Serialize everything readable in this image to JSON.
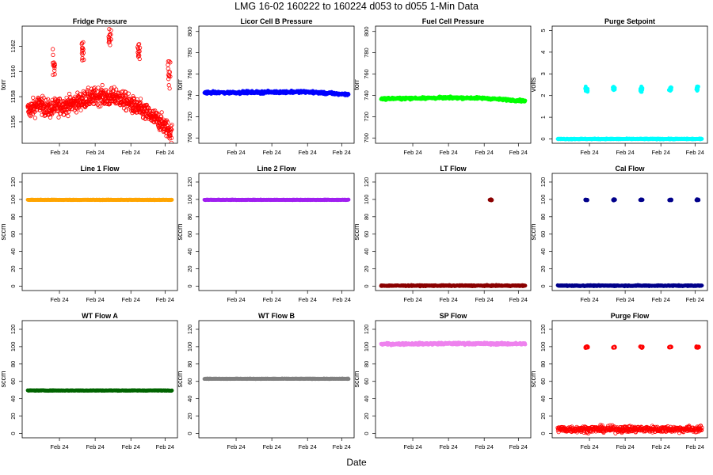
{
  "page": {
    "title": "LMG   16-02    160222 to 160224    d053 to d055   1-Min Data",
    "xlabel": "Date",
    "date_tick_label": "Feb 24"
  },
  "chart_data": [
    {
      "type": "scatter",
      "title": "Fridge Pressure",
      "ylabel": "torr",
      "ylim": [
        1154.3,
        1163.6
      ],
      "yticks": [
        1156,
        1158,
        1160,
        1162
      ],
      "color": "#ff0000",
      "marker": "open-circle",
      "n": 780,
      "baseline": [
        [
          0,
          1156.9
        ],
        [
          0.08,
          1157.4
        ],
        [
          0.15,
          1157.0
        ],
        [
          0.2,
          1157.2
        ],
        [
          0.3,
          1157.4
        ],
        [
          0.4,
          1157.8
        ],
        [
          0.5,
          1158.1
        ],
        [
          0.55,
          1157.9
        ],
        [
          0.62,
          1158.0
        ],
        [
          0.7,
          1157.5
        ],
        [
          0.78,
          1157.0
        ],
        [
          0.85,
          1156.5
        ],
        [
          0.92,
          1156.0
        ],
        [
          1,
          1155.1
        ]
      ],
      "noise": 0.35,
      "spikes": [
        {
          "x": 0.18,
          "y": 1160.8,
          "s": 0.6
        },
        {
          "x": 0.38,
          "y": 1161.6,
          "s": 0.5
        },
        {
          "x": 0.57,
          "y": 1162.6,
          "s": 0.35
        },
        {
          "x": 0.77,
          "y": 1161.6,
          "s": 0.45
        },
        {
          "x": 0.98,
          "y": 1159.8,
          "s": 0.5
        }
      ]
    },
    {
      "type": "scatter",
      "title": "Licor Cell B Pressure",
      "ylabel": "torr",
      "ylim": [
        695,
        805
      ],
      "yticks": [
        700,
        720,
        740,
        760,
        780,
        800
      ],
      "color": "#0000ff",
      "marker": "filled",
      "n": 400,
      "baseline": [
        [
          0,
          742.5
        ],
        [
          0.5,
          743
        ],
        [
          0.7,
          743.3
        ],
        [
          1,
          740.8
        ]
      ],
      "noise": 0.6,
      "spikes": []
    },
    {
      "type": "scatter",
      "title": "Fuel Cell Pressure",
      "ylabel": "torr",
      "ylim": [
        695,
        805
      ],
      "yticks": [
        700,
        720,
        740,
        760,
        780,
        800
      ],
      "color": "#00ff00",
      "marker": "filled",
      "n": 400,
      "baseline": [
        [
          0,
          736.8
        ],
        [
          0.5,
          737.8
        ],
        [
          0.7,
          737.4
        ],
        [
          1,
          734.8
        ]
      ],
      "noise": 0.5,
      "spikes": []
    },
    {
      "type": "scatter",
      "title": "Purge Setpoint",
      "ylabel": "volts",
      "ylim": [
        -0.2,
        5.2
      ],
      "yticks": [
        0,
        1,
        2,
        3,
        4,
        5
      ],
      "color": "#00ffff",
      "marker": "filled",
      "n": 400,
      "baseline": [
        [
          0,
          0
        ],
        [
          1,
          0
        ]
      ],
      "noise": 0.01,
      "spikes": [
        {
          "x": 0.2,
          "y": 2.32,
          "s": 0.06
        },
        {
          "x": 0.39,
          "y": 2.32,
          "s": 0.06
        },
        {
          "x": 0.58,
          "y": 2.3,
          "s": 0.06
        },
        {
          "x": 0.78,
          "y": 2.34,
          "s": 0.06
        },
        {
          "x": 0.97,
          "y": 2.32,
          "s": 0.06
        }
      ]
    },
    {
      "type": "scatter",
      "title": "Line 1 Flow",
      "ylabel": "sccm",
      "ylim": [
        -5,
        130
      ],
      "yticks": [
        0,
        20,
        40,
        60,
        80,
        100,
        120
      ],
      "color": "#ffa500",
      "marker": "filled",
      "n": 400,
      "baseline": [
        [
          0,
          99.5
        ],
        [
          1,
          99.5
        ]
      ],
      "noise": 0.15,
      "spikes": []
    },
    {
      "type": "scatter",
      "title": "Line 2 Flow",
      "ylabel": "sccm",
      "ylim": [
        -5,
        130
      ],
      "yticks": [
        0,
        20,
        40,
        60,
        80,
        100,
        120
      ],
      "color": "#a020f0",
      "marker": "filled",
      "n": 400,
      "baseline": [
        [
          0,
          99.5
        ],
        [
          1,
          99.5
        ]
      ],
      "noise": 0.15,
      "spikes": []
    },
    {
      "type": "scatter",
      "title": "LT Flow",
      "ylabel": "sccm",
      "ylim": [
        -5,
        130
      ],
      "yticks": [
        0,
        20,
        40,
        60,
        80,
        100,
        120
      ],
      "color": "#8b0000",
      "marker": "filled",
      "n": 400,
      "baseline": [
        [
          0,
          0.6
        ],
        [
          1,
          0.6
        ]
      ],
      "noise": 0.3,
      "spikes": [
        {
          "x": 0.76,
          "y": 99.5,
          "s": 0.3
        }
      ]
    },
    {
      "type": "scatter",
      "title": "Cal Flow",
      "ylabel": "sccm",
      "ylim": [
        -5,
        130
      ],
      "yticks": [
        0,
        20,
        40,
        60,
        80,
        100,
        120
      ],
      "color": "#00008b",
      "marker": "filled",
      "n": 400,
      "baseline": [
        [
          0,
          0.6
        ],
        [
          1,
          0.6
        ]
      ],
      "noise": 0.3,
      "spikes": [
        {
          "x": 0.2,
          "y": 99.5,
          "s": 0.3
        },
        {
          "x": 0.39,
          "y": 99.5,
          "s": 0.3
        },
        {
          "x": 0.58,
          "y": 99.5,
          "s": 0.3
        },
        {
          "x": 0.78,
          "y": 99.5,
          "s": 0.3
        },
        {
          "x": 0.97,
          "y": 99.5,
          "s": 0.3
        }
      ]
    },
    {
      "type": "scatter",
      "title": "WT Flow A",
      "ylabel": "sccm",
      "ylim": [
        -5,
        130
      ],
      "yticks": [
        0,
        20,
        40,
        60,
        80,
        100,
        120
      ],
      "color": "#006400",
      "marker": "filled",
      "n": 400,
      "baseline": [
        [
          0,
          49.5
        ],
        [
          1,
          49.5
        ]
      ],
      "noise": 0.15,
      "spikes": []
    },
    {
      "type": "scatter",
      "title": "WT Flow B",
      "ylabel": "sccm",
      "ylim": [
        -5,
        130
      ],
      "yticks": [
        0,
        20,
        40,
        60,
        80,
        100,
        120
      ],
      "color": "#808080",
      "marker": "filled",
      "n": 400,
      "baseline": [
        [
          0,
          63
        ],
        [
          1,
          63
        ]
      ],
      "noise": 0.15,
      "spikes": []
    },
    {
      "type": "scatter",
      "title": "SP Flow",
      "ylabel": "sccm",
      "ylim": [
        -5,
        130
      ],
      "yticks": [
        0,
        20,
        40,
        60,
        80,
        100,
        120
      ],
      "color": "#ee82ee",
      "marker": "filled",
      "n": 400,
      "baseline": [
        [
          0,
          103
        ],
        [
          0.5,
          103.5
        ],
        [
          1,
          103.2
        ]
      ],
      "noise": 0.6,
      "spikes": []
    },
    {
      "type": "scatter",
      "title": "Purge Flow",
      "ylabel": "sccm",
      "ylim": [
        -5,
        130
      ],
      "yticks": [
        0,
        20,
        40,
        60,
        80,
        100,
        120
      ],
      "color": "#ff0000",
      "marker": "open-circle",
      "n": 500,
      "baseline": [
        [
          0,
          5
        ],
        [
          1,
          5
        ]
      ],
      "noise": 1.8,
      "spikes": [
        {
          "x": 0.2,
          "y": 99.5,
          "s": 0.4
        },
        {
          "x": 0.39,
          "y": 99.5,
          "s": 0.4
        },
        {
          "x": 0.58,
          "y": 99.5,
          "s": 0.4
        },
        {
          "x": 0.78,
          "y": 99.5,
          "s": 0.4
        },
        {
          "x": 0.97,
          "y": 99.5,
          "s": 0.4
        }
      ]
    }
  ]
}
